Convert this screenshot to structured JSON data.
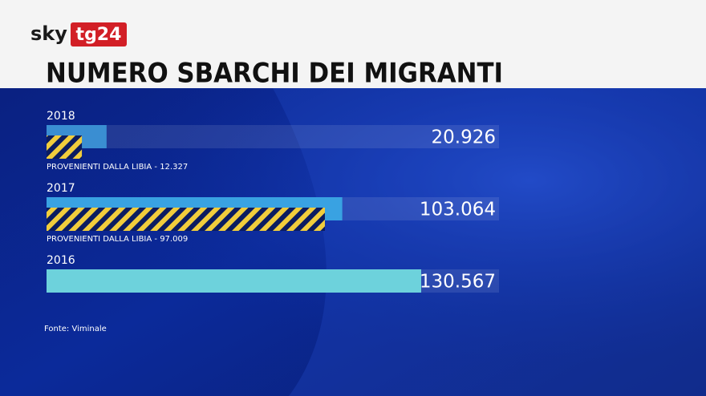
{
  "logo": {
    "brand": "sky",
    "channel": "tg24"
  },
  "chart_data": {
    "type": "bar",
    "orientation": "horizontal",
    "title": "NUMERO SBARCHI DEI MIGRANTI",
    "categories": [
      "2018",
      "2017",
      "2016"
    ],
    "series": [
      {
        "values": [
          20926,
          103064,
          130567
        ],
        "value_labels": [
          "20.926",
          "103.064",
          "130.567"
        ],
        "colors": [
          "#3a8ed2",
          "#39a2e2",
          "#6dd2dc"
        ]
      },
      {
        "values": [
          12327,
          97009,
          null
        ],
        "value_labels": [
          "PROVENIENTI DALLA LIBIA - 12.327",
          "PROVENIENTI DALLA LIBIA - 97.009",
          null
        ],
        "color": "#f1cd3c"
      }
    ],
    "source": "Fonte: Viminale"
  }
}
